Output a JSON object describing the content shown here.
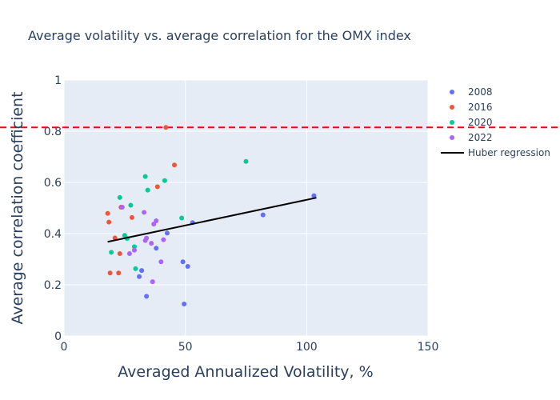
{
  "chart_data": {
    "type": "scatter",
    "title": "Average volatility vs. average correlation for the OMX index",
    "xlabel": "Averaged Annualized Volatility, %",
    "ylabel": "Average correlation coefficient",
    "xlim": [
      0,
      150
    ],
    "ylim": [
      0,
      1
    ],
    "xticks": [
      0,
      50,
      100,
      150
    ],
    "yticks": [
      0,
      0.2,
      0.4,
      0.6,
      0.8,
      1
    ],
    "ytick_labels": [
      "0",
      "0.2",
      "0.4",
      "0.6",
      "0.8",
      "1"
    ],
    "grid": true,
    "legend_position": "right",
    "series": [
      {
        "name": "2008",
        "color": "#636efa",
        "points": [
          [
            103,
            0.548
          ],
          [
            82,
            0.473
          ],
          [
            53,
            0.443
          ],
          [
            42.5,
            0.402
          ],
          [
            38,
            0.343
          ],
          [
            32,
            0.256
          ],
          [
            31,
            0.232
          ],
          [
            34,
            0.155
          ],
          [
            49,
            0.29
          ],
          [
            51,
            0.272
          ],
          [
            49.5,
            0.125
          ]
        ]
      },
      {
        "name": "2016",
        "color": "#ef553b",
        "points": [
          [
            42,
            0.815
          ],
          [
            45.5,
            0.668
          ],
          [
            38.5,
            0.583
          ],
          [
            23.5,
            0.503
          ],
          [
            18,
            0.479
          ],
          [
            28,
            0.463
          ],
          [
            18.5,
            0.445
          ],
          [
            21,
            0.383
          ],
          [
            23,
            0.322
          ],
          [
            19,
            0.246
          ],
          [
            22.5,
            0.246
          ]
        ]
      },
      {
        "name": "2020",
        "color": "#00cc96",
        "points": [
          [
            75,
            0.682
          ],
          [
            33.5,
            0.623
          ],
          [
            41.5,
            0.607
          ],
          [
            34.5,
            0.57
          ],
          [
            23,
            0.541
          ],
          [
            27.5,
            0.511
          ],
          [
            48.5,
            0.461
          ],
          [
            25,
            0.393
          ],
          [
            26,
            0.381
          ],
          [
            29,
            0.349
          ],
          [
            19.5,
            0.327
          ],
          [
            29.5,
            0.263
          ]
        ]
      },
      {
        "name": "2022",
        "color": "#ab63fa",
        "points": [
          [
            24,
            0.503
          ],
          [
            33,
            0.483
          ],
          [
            38,
            0.45
          ],
          [
            37,
            0.437
          ],
          [
            34,
            0.382
          ],
          [
            33.5,
            0.373
          ],
          [
            41,
            0.376
          ],
          [
            36,
            0.362
          ],
          [
            29,
            0.335
          ],
          [
            27,
            0.322
          ],
          [
            40,
            0.29
          ],
          [
            36.5,
            0.212
          ]
        ]
      }
    ],
    "regression": {
      "name": "Huber regression",
      "color": "#000000",
      "points": [
        [
          18,
          0.368
        ],
        [
          104,
          0.54
        ]
      ]
    },
    "reference_line": {
      "y": 0.815,
      "color": "#ff0000",
      "style": "dashed"
    }
  }
}
